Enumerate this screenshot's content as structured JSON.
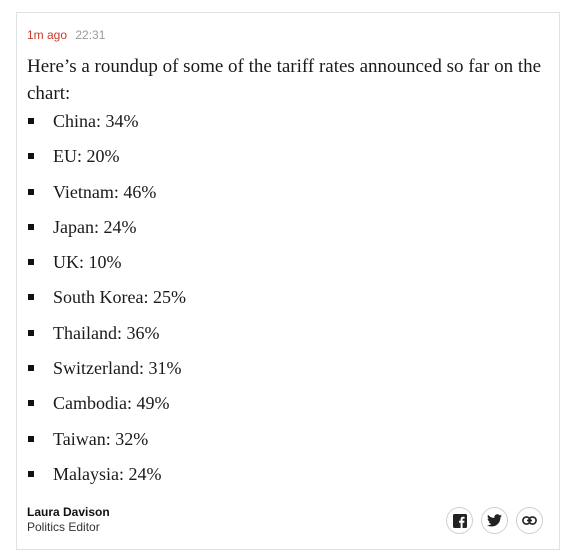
{
  "post": {
    "ago": "1m ago",
    "time": "22:31",
    "intro": "Here’s a roundup of some of the tariff rates announced so far on the chart:",
    "items": [
      "China: 34%",
      "EU: 20%",
      "Vietnam: 46%",
      "Japan: 24%",
      "UK: 10%",
      "South Korea: 25%",
      "Thailand: 36%",
      "Switzerland: 31%",
      "Cambodia: 49%",
      "Taiwan: 32%",
      "Malaysia: 24%"
    ]
  },
  "author": {
    "name": "Laura Davison",
    "role": "Politics Editor"
  },
  "share": {
    "icons": [
      "facebook-icon",
      "twitter-icon",
      "link-icon"
    ]
  },
  "colors": {
    "accent": "#c9382b",
    "muted": "#9a9a9a",
    "text": "#1a1a1a"
  }
}
